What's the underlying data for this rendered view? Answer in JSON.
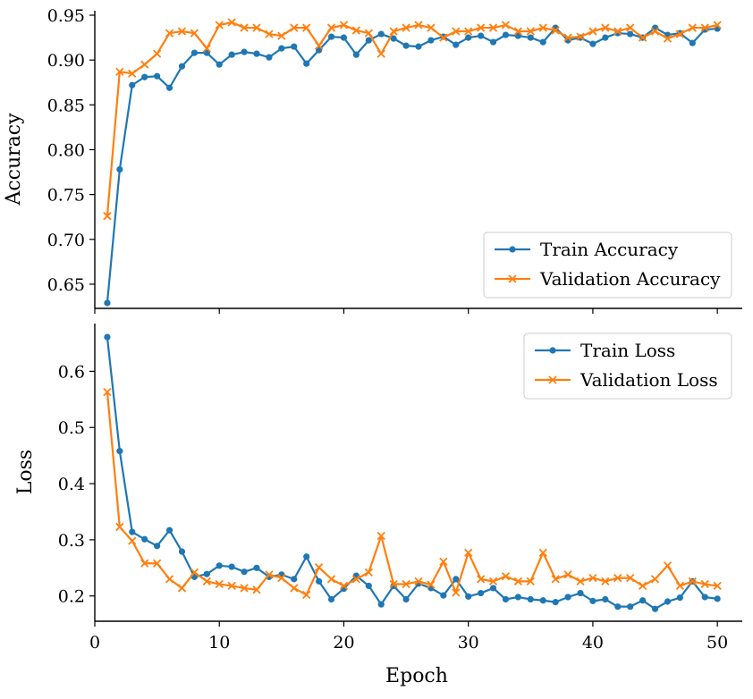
{
  "chart_data": [
    {
      "type": "line",
      "ylabel": "Accuracy",
      "xlabel": "",
      "xlim": [
        0,
        52
      ],
      "ylim": [
        0.623,
        0.955
      ],
      "yticks": [
        0.65,
        0.7,
        0.75,
        0.8,
        0.85,
        0.9,
        0.95
      ],
      "ytick_labels": [
        "0.65",
        "0.70",
        "0.75",
        "0.80",
        "0.85",
        "0.90",
        "0.95"
      ],
      "legend_position": "bottom-right",
      "grid": false,
      "x": [
        1,
        2,
        3,
        4,
        5,
        6,
        7,
        8,
        9,
        10,
        11,
        12,
        13,
        14,
        15,
        16,
        17,
        18,
        19,
        20,
        21,
        22,
        23,
        24,
        25,
        26,
        27,
        28,
        29,
        30,
        31,
        32,
        33,
        34,
        35,
        36,
        37,
        38,
        39,
        40,
        41,
        42,
        43,
        44,
        45,
        46,
        47,
        48,
        49,
        50
      ],
      "series": [
        {
          "name": "Train Accuracy",
          "color": "#1f77b4",
          "marker": "circle",
          "values": [
            0.629,
            0.778,
            0.872,
            0.881,
            0.882,
            0.869,
            0.893,
            0.908,
            0.908,
            0.895,
            0.906,
            0.909,
            0.907,
            0.903,
            0.913,
            0.915,
            0.896,
            0.911,
            0.926,
            0.925,
            0.906,
            0.922,
            0.929,
            0.924,
            0.916,
            0.915,
            0.922,
            0.926,
            0.917,
            0.925,
            0.927,
            0.92,
            0.928,
            0.927,
            0.925,
            0.92,
            0.936,
            0.922,
            0.925,
            0.918,
            0.925,
            0.93,
            0.929,
            0.925,
            0.936,
            0.928,
            0.93,
            0.919,
            0.934,
            0.935
          ]
        },
        {
          "name": "Validation Accuracy",
          "color": "#ff7f0e",
          "marker": "x",
          "values": [
            0.726,
            0.887,
            0.885,
            0.895,
            0.907,
            0.93,
            0.932,
            0.93,
            0.913,
            0.939,
            0.942,
            0.936,
            0.936,
            0.929,
            0.927,
            0.936,
            0.936,
            0.916,
            0.936,
            0.939,
            0.933,
            0.93,
            0.907,
            0.932,
            0.936,
            0.939,
            0.936,
            0.925,
            0.932,
            0.932,
            0.936,
            0.936,
            0.939,
            0.932,
            0.932,
            0.936,
            0.933,
            0.925,
            0.926,
            0.932,
            0.936,
            0.932,
            0.936,
            0.925,
            0.932,
            0.924,
            0.929,
            0.936,
            0.936,
            0.939
          ]
        }
      ]
    },
    {
      "type": "line",
      "ylabel": "Loss",
      "xlabel": "Epoch",
      "xlim": [
        0,
        52
      ],
      "ylim": [
        0.155,
        0.685
      ],
      "yticks": [
        0.2,
        0.3,
        0.4,
        0.5,
        0.6
      ],
      "ytick_labels": [
        "0.2",
        "0.3",
        "0.4",
        "0.5",
        "0.6"
      ],
      "xticks": [
        0,
        10,
        20,
        30,
        40,
        50
      ],
      "xtick_labels": [
        "0",
        "10",
        "20",
        "30",
        "40",
        "50"
      ],
      "legend_position": "top-right",
      "grid": false,
      "x": [
        1,
        2,
        3,
        4,
        5,
        6,
        7,
        8,
        9,
        10,
        11,
        12,
        13,
        14,
        15,
        16,
        17,
        18,
        19,
        20,
        21,
        22,
        23,
        24,
        25,
        26,
        27,
        28,
        29,
        30,
        31,
        32,
        33,
        34,
        35,
        36,
        37,
        38,
        39,
        40,
        41,
        42,
        43,
        44,
        45,
        46,
        47,
        48,
        49,
        50
      ],
      "series": [
        {
          "name": "Train Loss",
          "color": "#1f77b4",
          "marker": "circle",
          "values": [
            0.661,
            0.458,
            0.314,
            0.301,
            0.289,
            0.317,
            0.279,
            0.234,
            0.239,
            0.254,
            0.252,
            0.243,
            0.25,
            0.234,
            0.238,
            0.23,
            0.27,
            0.226,
            0.194,
            0.213,
            0.236,
            0.218,
            0.185,
            0.218,
            0.194,
            0.222,
            0.214,
            0.201,
            0.23,
            0.199,
            0.205,
            0.214,
            0.194,
            0.198,
            0.194,
            0.192,
            0.189,
            0.198,
            0.205,
            0.191,
            0.194,
            0.181,
            0.181,
            0.192,
            0.177,
            0.19,
            0.197,
            0.226,
            0.198,
            0.195
          ]
        },
        {
          "name": "Validation Loss",
          "color": "#ff7f0e",
          "marker": "x",
          "values": [
            0.563,
            0.323,
            0.298,
            0.258,
            0.258,
            0.23,
            0.214,
            0.242,
            0.226,
            0.221,
            0.218,
            0.214,
            0.211,
            0.238,
            0.232,
            0.214,
            0.202,
            0.251,
            0.23,
            0.218,
            0.23,
            0.242,
            0.307,
            0.221,
            0.221,
            0.226,
            0.22,
            0.261,
            0.206,
            0.277,
            0.23,
            0.226,
            0.235,
            0.226,
            0.226,
            0.277,
            0.23,
            0.238,
            0.226,
            0.232,
            0.226,
            0.232,
            0.232,
            0.218,
            0.23,
            0.254,
            0.218,
            0.226,
            0.221,
            0.218
          ]
        }
      ]
    }
  ]
}
